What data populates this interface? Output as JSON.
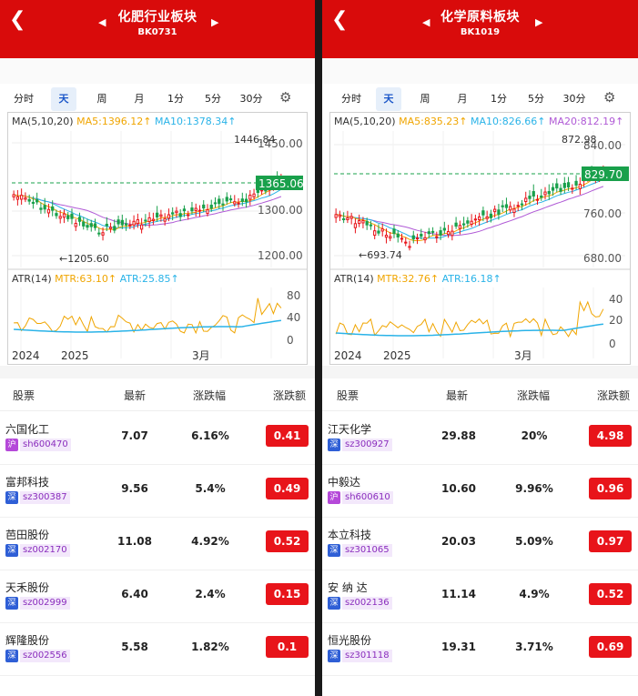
{
  "left": {
    "title": "化肥行业板块",
    "code": "BK0731",
    "tabs": [
      "分时",
      "天",
      "周",
      "月",
      "1分",
      "5分",
      "30分"
    ],
    "active_tab": "天",
    "ma_label": "MA(5,10,20)",
    "ma5": "MA5:1396.12↑",
    "ma10": "MA10:1378.34↑",
    "price_high": "1446.84",
    "price_low": "←1205.60",
    "last_price": "1365.06",
    "y_ticks": [
      "1450.00",
      "1300.00",
      "1200.00"
    ],
    "atr_label": "ATR(14)",
    "mtr": "MTR:63.10↑",
    "atr": "ATR:25.85↑",
    "atr_ticks": [
      "80",
      "40",
      "0"
    ],
    "x_labels": [
      "2024",
      "2025",
      "3月"
    ],
    "headers": [
      "股票",
      "最新",
      "涨跌幅",
      "涨跌额"
    ],
    "rows": [
      {
        "name": "六国化工",
        "market": "沪",
        "mkt": "sh",
        "code": "sh600470",
        "last": "7.07",
        "pct": "6.16%",
        "chg": "0.41"
      },
      {
        "name": "富邦科技",
        "market": "深",
        "mkt": "sz",
        "code": "sz300387",
        "last": "9.56",
        "pct": "5.4%",
        "chg": "0.49"
      },
      {
        "name": "芭田股份",
        "market": "深",
        "mkt": "sz",
        "code": "sz002170",
        "last": "11.08",
        "pct": "4.92%",
        "chg": "0.52"
      },
      {
        "name": "天禾股份",
        "market": "深",
        "mkt": "sz",
        "code": "sz002999",
        "last": "6.40",
        "pct": "2.4%",
        "chg": "0.15"
      },
      {
        "name": "辉隆股份",
        "market": "深",
        "mkt": "sz",
        "code": "sz002556",
        "last": "5.58",
        "pct": "1.82%",
        "chg": "0.1"
      }
    ]
  },
  "right": {
    "title": "化学原料板块",
    "code": "BK1019",
    "tabs": [
      "分时",
      "天",
      "周",
      "月",
      "1分",
      "5分",
      "30分"
    ],
    "active_tab": "天",
    "ma_label": "MA(5,10,20)",
    "ma5": "MA5:835.23↑",
    "ma10": "MA10:826.66↑",
    "ma20": "MA20:812.19↑",
    "price_high": "872.98",
    "price_low": "←693.74",
    "last_price": "829.70",
    "y_ticks": [
      "840.00",
      "760.00",
      "680.00"
    ],
    "atr_label": "ATR(14)",
    "mtr": "MTR:32.76↑",
    "atr": "ATR:16.18↑",
    "atr_ticks": [
      "40",
      "20",
      "0"
    ],
    "x_labels": [
      "2024",
      "2025",
      "3月"
    ],
    "headers": [
      "股票",
      "最新",
      "涨跌幅",
      "涨跌额"
    ],
    "rows": [
      {
        "name": "江天化学",
        "market": "深",
        "mkt": "sz",
        "code": "sz300927",
        "last": "29.88",
        "pct": "20%",
        "chg": "4.98"
      },
      {
        "name": "中毅达",
        "market": "沪",
        "mkt": "sh",
        "code": "sh600610",
        "last": "10.60",
        "pct": "9.96%",
        "chg": "0.96"
      },
      {
        "name": "本立科技",
        "market": "深",
        "mkt": "sz",
        "code": "sz301065",
        "last": "20.03",
        "pct": "5.09%",
        "chg": "0.97"
      },
      {
        "name": "安 纳 达",
        "market": "深",
        "mkt": "sz",
        "code": "sz002136",
        "last": "11.14",
        "pct": "4.9%",
        "chg": "0.52"
      },
      {
        "name": "恒光股份",
        "market": "深",
        "mkt": "sz",
        "code": "sz301118",
        "last": "19.31",
        "pct": "3.71%",
        "chg": "0.69"
      }
    ]
  },
  "colors": {
    "header": "#d90b0b",
    "up": "#e8141a",
    "down": "#19a04b",
    "ma5": "#f0a500",
    "ma10": "#2ab3e8",
    "ma20": "#b05ad6"
  }
}
